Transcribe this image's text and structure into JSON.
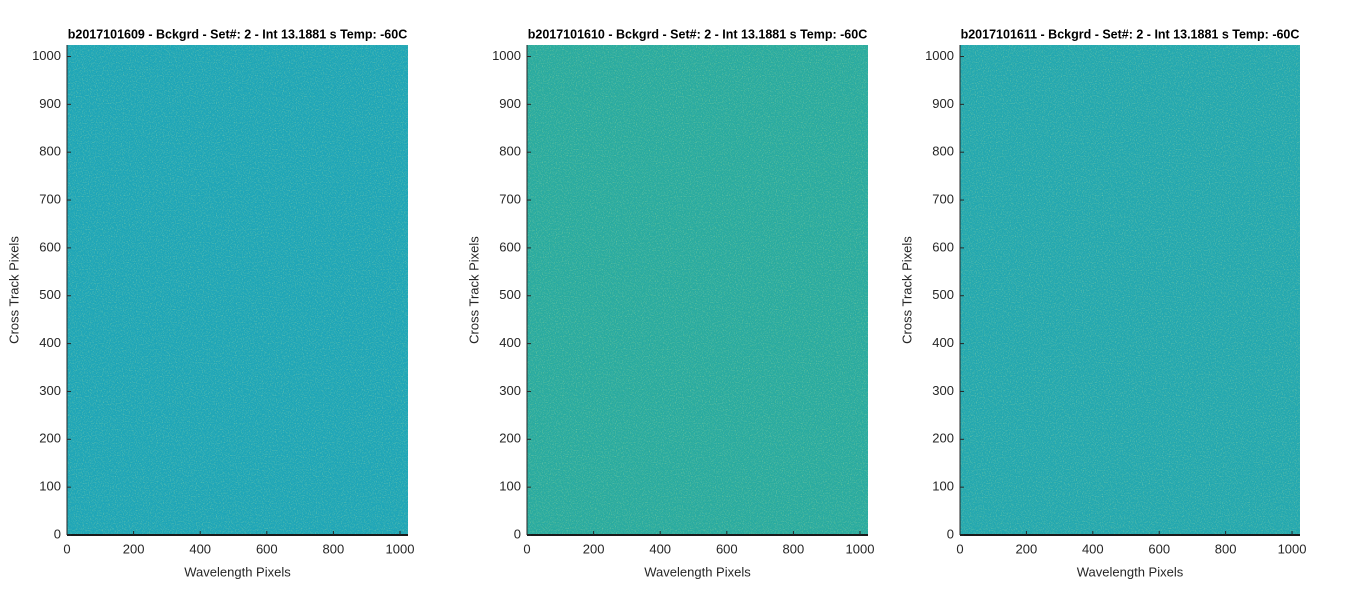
{
  "chart_data": [
    {
      "type": "heatmap",
      "title": "b2017101609 - Bckgrd - Set#: 2 - Int 13.1881 s Temp: -60C",
      "xlabel": "Wavelength Pixels",
      "ylabel": "Cross Track Pixels",
      "xlim": [
        0,
        1024
      ],
      "ylim": [
        0,
        1024
      ],
      "xticks": [
        0,
        200,
        400,
        600,
        800,
        1000
      ],
      "yticks": [
        0,
        100,
        200,
        300,
        400,
        500,
        600,
        700,
        800,
        900,
        1000
      ],
      "color": "#1fa6b6"
    },
    {
      "type": "heatmap",
      "title": "b2017101610 - Bckgrd - Set#: 2 - Int 13.1881 s Temp: -60C",
      "xlabel": "Wavelength Pixels",
      "ylabel": "Cross Track Pixels",
      "xlim": [
        0,
        1024
      ],
      "ylim": [
        0,
        1024
      ],
      "xticks": [
        0,
        200,
        400,
        600,
        800,
        1000
      ],
      "yticks": [
        0,
        100,
        200,
        300,
        400,
        500,
        600,
        700,
        800,
        900,
        1000
      ],
      "color": "#2aab9e"
    },
    {
      "type": "heatmap",
      "title": "b2017101611 - Bckgrd - Set#: 2 - Int 13.1881 s Temp: -60C",
      "xlabel": "Wavelength Pixels",
      "ylabel": "Cross Track Pixels",
      "xlim": [
        0,
        1024
      ],
      "ylim": [
        0,
        1024
      ],
      "xticks": [
        0,
        200,
        400,
        600,
        800,
        1000
      ],
      "yticks": [
        0,
        100,
        200,
        300,
        400,
        500,
        600,
        700,
        800,
        900,
        1000
      ],
      "color": "#24a8ae"
    }
  ]
}
